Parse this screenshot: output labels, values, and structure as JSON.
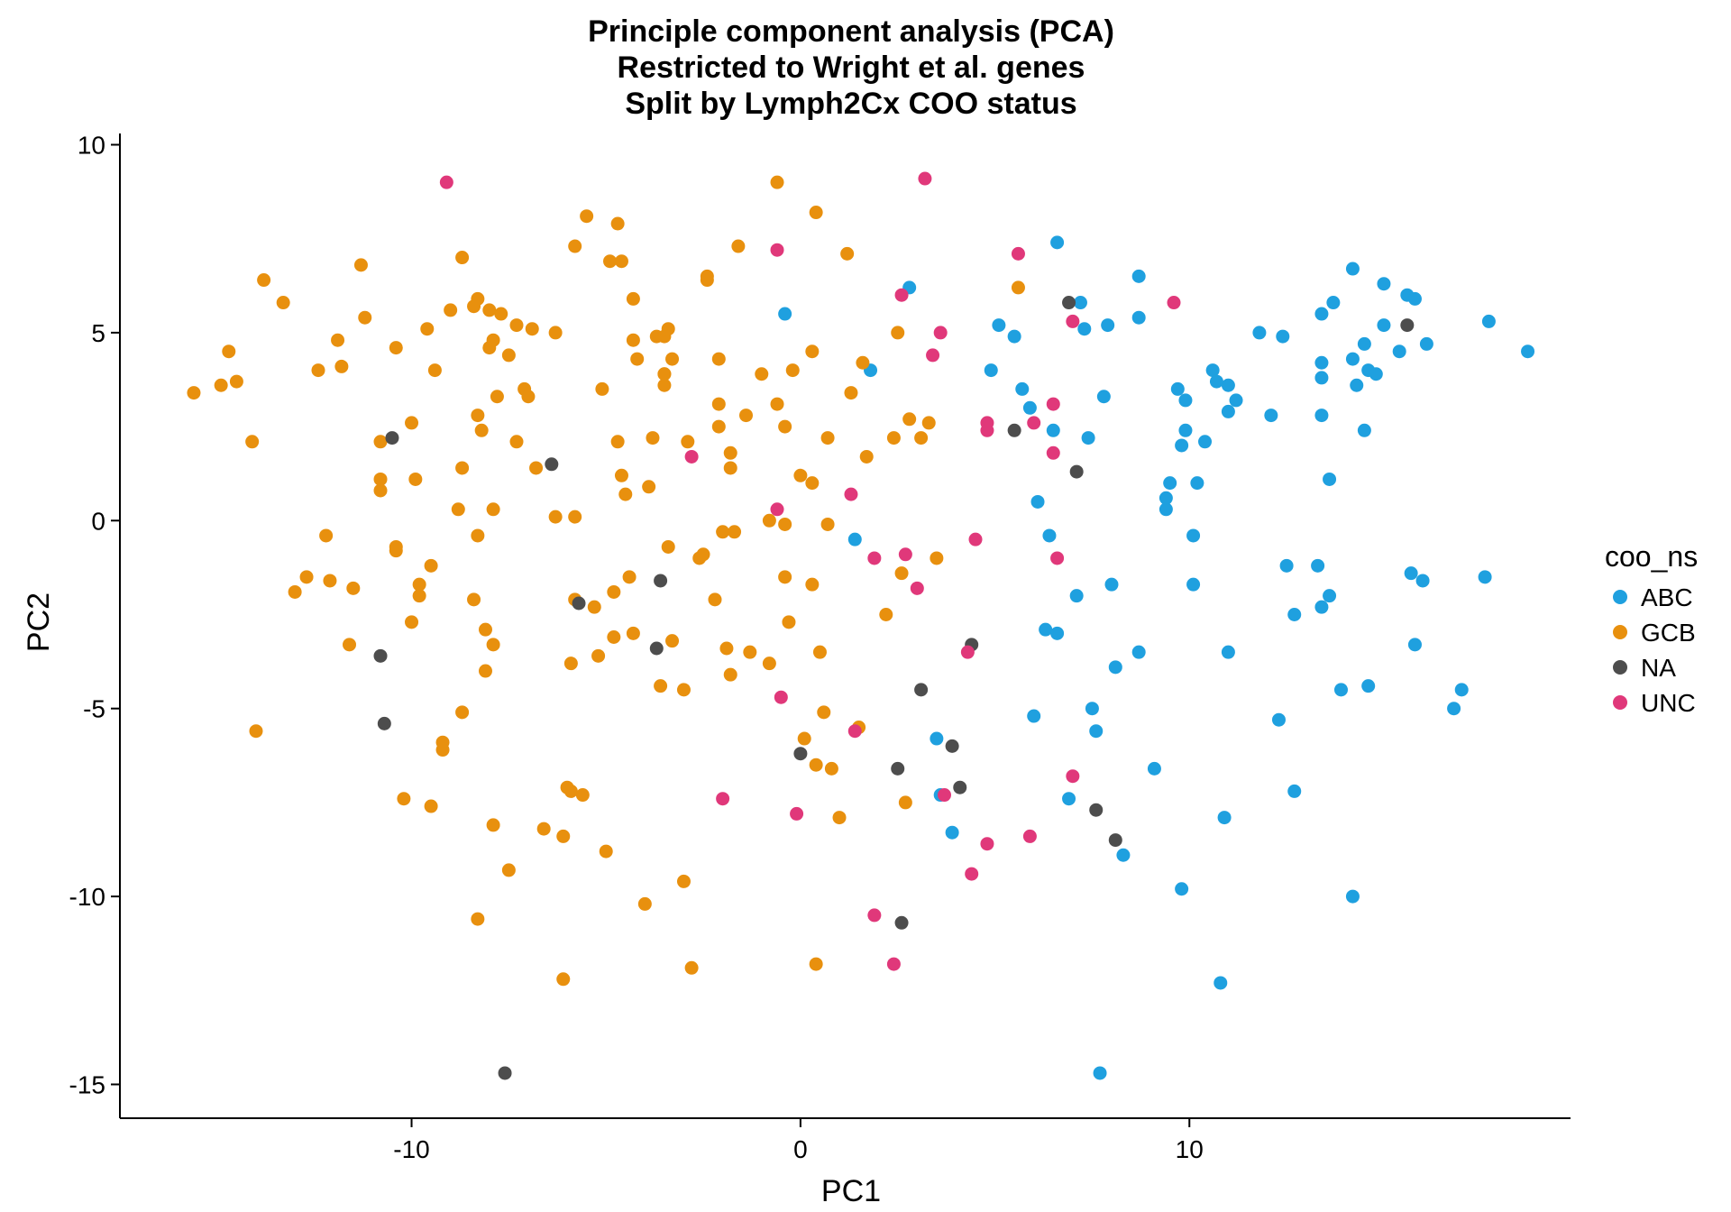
{
  "chart_data": {
    "type": "scatter",
    "title": [
      "Principle component analysis (PCA)",
      "Restricted to Wright et al. genes",
      "Split by Lymph2Cx COO status"
    ],
    "xlabel": "PC1",
    "ylabel": "PC2",
    "xlim": [
      -17.5,
      19.8
    ],
    "ylim": [
      -15.9,
      10.3
    ],
    "xticks": [
      -10,
      0,
      10
    ],
    "yticks": [
      10,
      5,
      0,
      -5,
      -10,
      -15
    ],
    "grid": false,
    "legend": {
      "title": "coo_ns",
      "position": "right"
    },
    "series": [
      {
        "name": "ABC",
        "color": "#1fa0df",
        "points": [
          [
            -0.4,
            5.5
          ],
          [
            1.4,
            -0.5
          ],
          [
            1.8,
            4.0
          ],
          [
            2.8,
            6.2
          ],
          [
            3.5,
            -5.8
          ],
          [
            3.6,
            -7.3
          ],
          [
            3.9,
            -8.3
          ],
          [
            4.9,
            4.0
          ],
          [
            5.1,
            5.2
          ],
          [
            5.5,
            4.9
          ],
          [
            5.7,
            3.5
          ],
          [
            5.9,
            3.0
          ],
          [
            6.0,
            -5.2
          ],
          [
            6.1,
            0.5
          ],
          [
            6.3,
            -2.9
          ],
          [
            6.4,
            -0.4
          ],
          [
            6.5,
            2.4
          ],
          [
            6.6,
            -3.0
          ],
          [
            6.6,
            7.4
          ],
          [
            6.9,
            -7.4
          ],
          [
            7.1,
            -2.0
          ],
          [
            7.2,
            5.8
          ],
          [
            7.3,
            5.1
          ],
          [
            7.4,
            2.2
          ],
          [
            7.5,
            -5.0
          ],
          [
            7.6,
            -5.6
          ],
          [
            7.7,
            -14.7
          ],
          [
            7.8,
            3.3
          ],
          [
            7.9,
            5.2
          ],
          [
            8.0,
            -1.7
          ],
          [
            8.1,
            -3.9
          ],
          [
            8.3,
            -8.9
          ],
          [
            8.7,
            -3.5
          ],
          [
            8.7,
            5.4
          ],
          [
            8.7,
            6.5
          ],
          [
            9.1,
            -6.6
          ],
          [
            9.4,
            0.3
          ],
          [
            9.4,
            0.6
          ],
          [
            9.5,
            1.0
          ],
          [
            9.7,
            3.5
          ],
          [
            9.8,
            2.0
          ],
          [
            9.8,
            -9.8
          ],
          [
            9.9,
            2.4
          ],
          [
            9.9,
            3.2
          ],
          [
            10.1,
            -0.4
          ],
          [
            10.1,
            -1.7
          ],
          [
            10.2,
            1.0
          ],
          [
            10.4,
            2.1
          ],
          [
            10.6,
            4.0
          ],
          [
            10.7,
            3.7
          ],
          [
            10.8,
            -12.3
          ],
          [
            10.9,
            -7.9
          ],
          [
            11.0,
            3.6
          ],
          [
            11.0,
            2.9
          ],
          [
            11.0,
            -3.5
          ],
          [
            11.2,
            3.2
          ],
          [
            11.8,
            5.0
          ],
          [
            12.1,
            2.8
          ],
          [
            12.3,
            -5.3
          ],
          [
            12.4,
            4.9
          ],
          [
            12.5,
            -1.2
          ],
          [
            12.7,
            -2.5
          ],
          [
            12.7,
            -7.2
          ],
          [
            13.3,
            -1.2
          ],
          [
            13.4,
            2.8
          ],
          [
            13.4,
            3.8
          ],
          [
            13.4,
            4.2
          ],
          [
            13.4,
            -2.3
          ],
          [
            13.4,
            5.5
          ],
          [
            13.6,
            -2.0
          ],
          [
            13.6,
            1.1
          ],
          [
            13.7,
            5.8
          ],
          [
            13.9,
            -4.5
          ],
          [
            14.2,
            4.3
          ],
          [
            14.2,
            6.7
          ],
          [
            14.2,
            -10.0
          ],
          [
            14.3,
            3.6
          ],
          [
            14.5,
            4.7
          ],
          [
            14.5,
            2.4
          ],
          [
            14.6,
            -4.4
          ],
          [
            14.6,
            4.0
          ],
          [
            14.8,
            3.9
          ],
          [
            15.0,
            5.2
          ],
          [
            15.0,
            6.3
          ],
          [
            15.4,
            4.5
          ],
          [
            15.6,
            6.0
          ],
          [
            15.7,
            -1.4
          ],
          [
            15.8,
            -3.3
          ],
          [
            15.8,
            5.9
          ],
          [
            16.0,
            -1.6
          ],
          [
            16.1,
            4.7
          ],
          [
            16.8,
            -5.0
          ],
          [
            17.0,
            -4.5
          ],
          [
            17.6,
            -1.5
          ],
          [
            17.7,
            5.3
          ],
          [
            18.7,
            4.5
          ]
        ]
      },
      {
        "name": "GCB",
        "color": "#e8900e",
        "points": [
          [
            -15.6,
            3.4
          ],
          [
            -14.9,
            3.6
          ],
          [
            -14.7,
            4.5
          ],
          [
            -14.5,
            3.7
          ],
          [
            -14.1,
            2.1
          ],
          [
            -14.0,
            -5.6
          ],
          [
            -13.8,
            6.4
          ],
          [
            -13.3,
            5.8
          ],
          [
            -13.0,
            -1.9
          ],
          [
            -12.7,
            -1.5
          ],
          [
            -12.4,
            4.0
          ],
          [
            -12.2,
            -0.4
          ],
          [
            -12.1,
            -1.6
          ],
          [
            -11.9,
            4.8
          ],
          [
            -11.8,
            4.1
          ],
          [
            -11.6,
            -3.3
          ],
          [
            -11.5,
            -1.8
          ],
          [
            -11.3,
            6.8
          ],
          [
            -11.2,
            5.4
          ],
          [
            -10.8,
            0.8
          ],
          [
            -10.8,
            2.1
          ],
          [
            -10.8,
            1.1
          ],
          [
            -10.4,
            -0.7
          ],
          [
            -10.4,
            -0.8
          ],
          [
            -10.4,
            4.6
          ],
          [
            -10.2,
            -7.4
          ],
          [
            -10.0,
            -2.7
          ],
          [
            -10.0,
            2.6
          ],
          [
            -9.9,
            1.1
          ],
          [
            -9.8,
            -1.7
          ],
          [
            -9.8,
            -2.0
          ],
          [
            -9.6,
            5.1
          ],
          [
            -9.5,
            -1.2
          ],
          [
            -9.5,
            -7.6
          ],
          [
            -9.4,
            4.0
          ],
          [
            -9.2,
            -5.9
          ],
          [
            -9.2,
            -6.1
          ],
          [
            -9.0,
            5.6
          ],
          [
            -8.8,
            0.3
          ],
          [
            -8.7,
            -5.1
          ],
          [
            -8.7,
            1.4
          ],
          [
            -8.7,
            7.0
          ],
          [
            -8.4,
            5.7
          ],
          [
            -8.4,
            -2.1
          ],
          [
            -8.3,
            5.9
          ],
          [
            -8.3,
            -0.4
          ],
          [
            -8.3,
            -10.6
          ],
          [
            -8.3,
            2.8
          ],
          [
            -8.2,
            2.4
          ],
          [
            -8.1,
            -4.0
          ],
          [
            -8.1,
            -2.9
          ],
          [
            -8.0,
            5.6
          ],
          [
            -8.0,
            4.6
          ],
          [
            -7.9,
            4.8
          ],
          [
            -7.9,
            0.3
          ],
          [
            -7.9,
            -3.3
          ],
          [
            -7.9,
            -8.1
          ],
          [
            -7.8,
            3.3
          ],
          [
            -7.7,
            5.5
          ],
          [
            -7.5,
            4.4
          ],
          [
            -7.5,
            -9.3
          ],
          [
            -7.3,
            5.2
          ],
          [
            -7.3,
            2.1
          ],
          [
            -7.1,
            3.5
          ],
          [
            -7.0,
            3.3
          ],
          [
            -6.9,
            5.1
          ],
          [
            -6.8,
            1.4
          ],
          [
            -6.6,
            -8.2
          ],
          [
            -6.3,
            5.0
          ],
          [
            -6.3,
            0.1
          ],
          [
            -6.1,
            -12.2
          ],
          [
            -6.1,
            -8.4
          ],
          [
            -6.0,
            -7.1
          ],
          [
            -5.9,
            -7.2
          ],
          [
            -5.9,
            -3.8
          ],
          [
            -5.8,
            0.1
          ],
          [
            -5.8,
            -2.1
          ],
          [
            -5.8,
            7.3
          ],
          [
            -5.6,
            -7.3
          ],
          [
            -5.5,
            8.1
          ],
          [
            -5.3,
            -2.3
          ],
          [
            -5.2,
            -3.6
          ],
          [
            -5.1,
            3.5
          ],
          [
            -5.0,
            -8.8
          ],
          [
            -4.9,
            6.9
          ],
          [
            -4.8,
            -3.1
          ],
          [
            -4.8,
            -1.9
          ],
          [
            -4.7,
            2.1
          ],
          [
            -4.7,
            7.9
          ],
          [
            -4.6,
            1.2
          ],
          [
            -4.6,
            6.9
          ],
          [
            -4.5,
            0.7
          ],
          [
            -4.4,
            -1.5
          ],
          [
            -4.3,
            -3.0
          ],
          [
            -4.3,
            5.9
          ],
          [
            -4.3,
            4.8
          ],
          [
            -4.2,
            4.3
          ],
          [
            -4.0,
            -10.2
          ],
          [
            -3.9,
            0.9
          ],
          [
            -3.8,
            2.2
          ],
          [
            -3.7,
            4.9
          ],
          [
            -3.6,
            -4.4
          ],
          [
            -3.5,
            4.9
          ],
          [
            -3.5,
            3.9
          ],
          [
            -3.5,
            3.9
          ],
          [
            -3.5,
            3.6
          ],
          [
            -3.4,
            5.1
          ],
          [
            -3.4,
            -0.7
          ],
          [
            -3.3,
            -3.2
          ],
          [
            -3.3,
            4.3
          ],
          [
            -3.0,
            -4.5
          ],
          [
            -3.0,
            -9.6
          ],
          [
            -2.9,
            2.1
          ],
          [
            -2.8,
            -11.9
          ],
          [
            -2.6,
            -1.0
          ],
          [
            -2.5,
            -0.9
          ],
          [
            -2.4,
            6.4
          ],
          [
            -2.4,
            6.5
          ],
          [
            -2.2,
            -2.1
          ],
          [
            -2.1,
            2.5
          ],
          [
            -2.1,
            3.1
          ],
          [
            -2.1,
            4.3
          ],
          [
            -2.0,
            -0.3
          ],
          [
            -1.9,
            -3.4
          ],
          [
            -1.8,
            1.8
          ],
          [
            -1.8,
            -4.1
          ],
          [
            -1.8,
            1.4
          ],
          [
            -1.7,
            -0.3
          ],
          [
            -1.6,
            7.3
          ],
          [
            -1.4,
            2.8
          ],
          [
            -1.3,
            -3.5
          ],
          [
            -1.0,
            3.9
          ],
          [
            -0.8,
            -3.8
          ],
          [
            -0.8,
            0.0
          ],
          [
            -0.6,
            3.1
          ],
          [
            -0.6,
            9.0
          ],
          [
            -0.4,
            -0.1
          ],
          [
            -0.4,
            -1.5
          ],
          [
            -0.4,
            2.5
          ],
          [
            -0.3,
            -2.7
          ],
          [
            -0.2,
            4.0
          ],
          [
            0.0,
            1.2
          ],
          [
            0.1,
            -5.8
          ],
          [
            0.3,
            1.0
          ],
          [
            0.3,
            -1.7
          ],
          [
            0.3,
            4.5
          ],
          [
            0.4,
            -6.5
          ],
          [
            0.4,
            -11.8
          ],
          [
            0.4,
            8.2
          ],
          [
            0.5,
            -3.5
          ],
          [
            0.6,
            -5.1
          ],
          [
            0.7,
            -0.1
          ],
          [
            0.7,
            2.2
          ],
          [
            0.8,
            -6.6
          ],
          [
            1.0,
            -7.9
          ],
          [
            1.2,
            7.1
          ],
          [
            1.3,
            3.4
          ],
          [
            1.5,
            -5.5
          ],
          [
            1.6,
            4.2
          ],
          [
            1.7,
            1.7
          ],
          [
            2.2,
            -2.5
          ],
          [
            2.4,
            2.2
          ],
          [
            2.5,
            5.0
          ],
          [
            2.6,
            -1.4
          ],
          [
            2.7,
            -7.5
          ],
          [
            2.8,
            2.7
          ],
          [
            3.1,
            2.2
          ],
          [
            3.3,
            2.6
          ],
          [
            3.5,
            -1.0
          ],
          [
            5.6,
            6.2
          ]
        ]
      },
      {
        "name": "NA",
        "color": "#4d4d4d",
        "points": [
          [
            -10.8,
            -3.6
          ],
          [
            -10.7,
            -5.4
          ],
          [
            -10.5,
            2.2
          ],
          [
            -7.6,
            -14.7
          ],
          [
            -6.4,
            1.5
          ],
          [
            -5.7,
            -2.2
          ],
          [
            -3.6,
            -1.6
          ],
          [
            -3.7,
            -3.4
          ],
          [
            -0.0,
            -6.2
          ],
          [
            2.5,
            -6.6
          ],
          [
            2.6,
            -10.7
          ],
          [
            3.1,
            -4.5
          ],
          [
            3.9,
            -6.0
          ],
          [
            4.1,
            -7.1
          ],
          [
            4.4,
            -3.3
          ],
          [
            5.5,
            2.4
          ],
          [
            6.9,
            5.8
          ],
          [
            7.1,
            1.3
          ],
          [
            7.6,
            -7.7
          ],
          [
            8.1,
            -8.5
          ],
          [
            15.6,
            5.2
          ]
        ]
      },
      {
        "name": "UNC",
        "color": "#e0387a",
        "points": [
          [
            -9.1,
            9.0
          ],
          [
            -2.8,
            1.7
          ],
          [
            -2.0,
            -7.4
          ],
          [
            -0.6,
            7.2
          ],
          [
            -0.6,
            0.3
          ],
          [
            -0.5,
            -4.7
          ],
          [
            -0.1,
            -7.8
          ],
          [
            1.3,
            0.7
          ],
          [
            1.4,
            -5.6
          ],
          [
            1.9,
            -1.0
          ],
          [
            1.9,
            -10.5
          ],
          [
            2.4,
            -11.8
          ],
          [
            2.6,
            6.0
          ],
          [
            2.7,
            -0.9
          ],
          [
            3.0,
            -1.8
          ],
          [
            3.2,
            9.1
          ],
          [
            3.4,
            4.4
          ],
          [
            3.6,
            5.0
          ],
          [
            3.7,
            -7.3
          ],
          [
            4.3,
            -3.5
          ],
          [
            4.4,
            -9.4
          ],
          [
            4.5,
            -0.5
          ],
          [
            4.8,
            2.6
          ],
          [
            4.8,
            2.4
          ],
          [
            4.8,
            -8.6
          ],
          [
            5.6,
            7.1
          ],
          [
            5.9,
            -8.4
          ],
          [
            6.0,
            2.6
          ],
          [
            6.5,
            3.1
          ],
          [
            6.5,
            1.8
          ],
          [
            6.6,
            -1.0
          ],
          [
            7.0,
            5.3
          ],
          [
            7.0,
            -6.8
          ],
          [
            9.6,
            5.8
          ]
        ]
      }
    ]
  }
}
